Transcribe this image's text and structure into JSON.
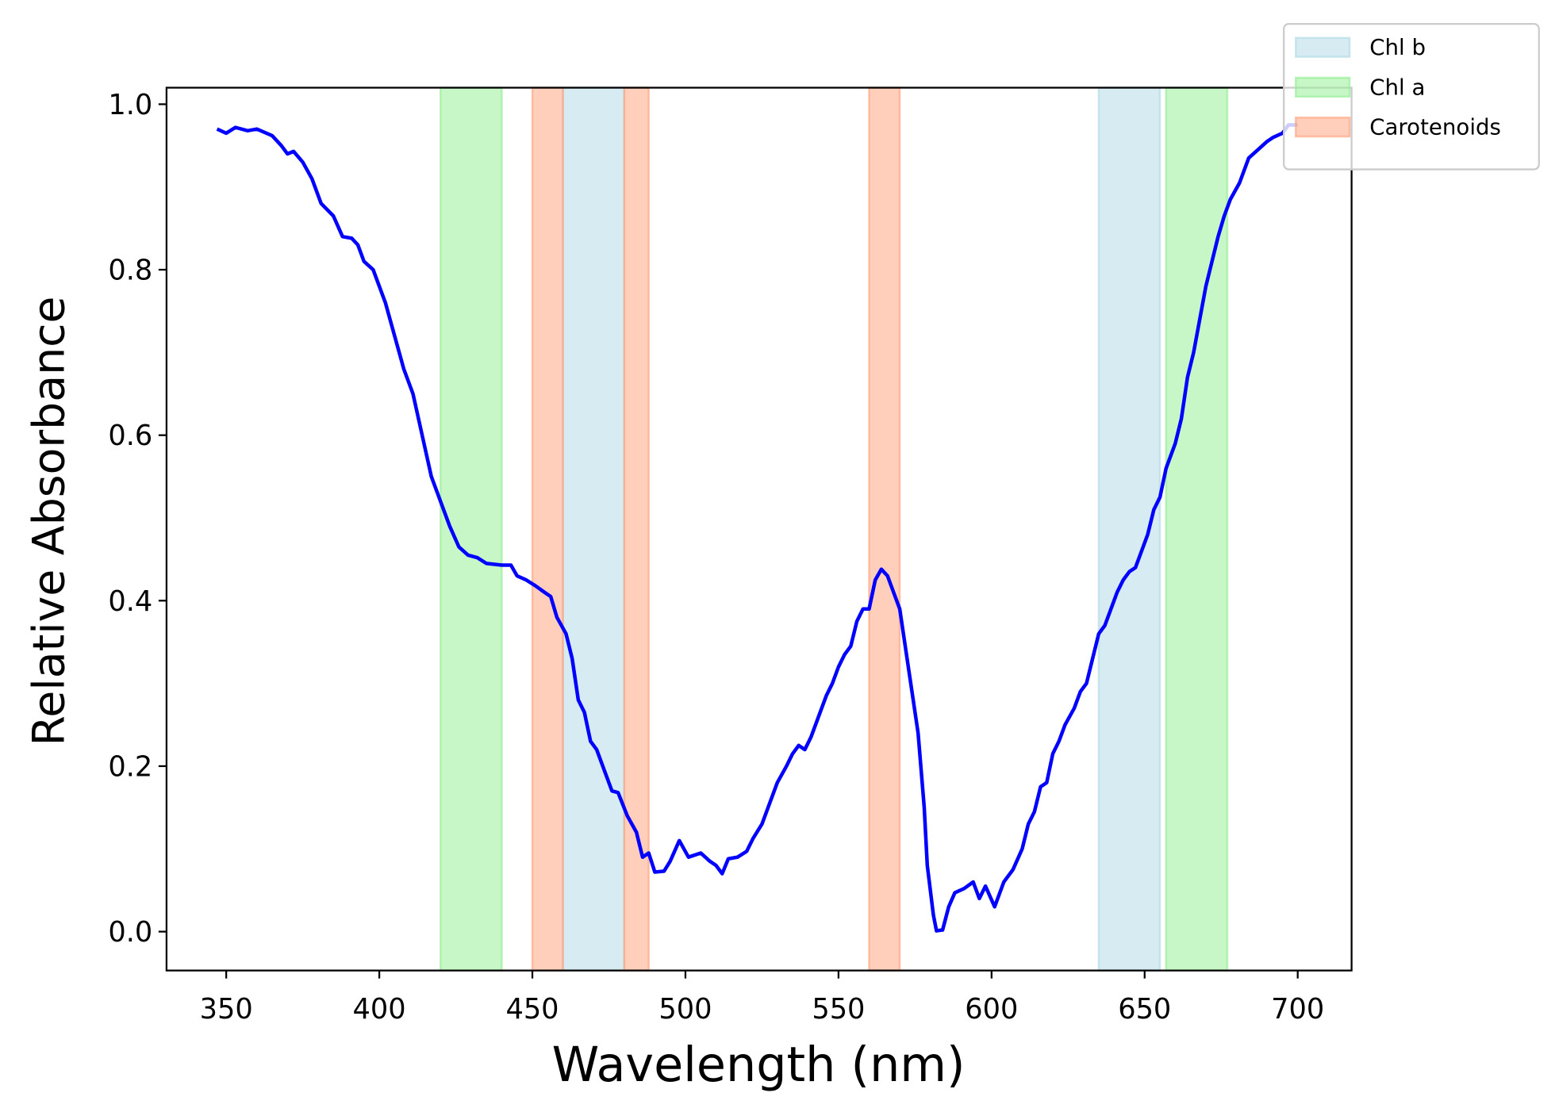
{
  "chart_data": {
    "type": "line",
    "xlabel": "Wavelength (nm)",
    "ylabel": "Relative Absorbance",
    "xlim": [
      330.5,
      717.6
    ],
    "ylim": [
      -0.047,
      1.02
    ],
    "xticks": [
      350,
      400,
      450,
      500,
      550,
      600,
      650,
      700
    ],
    "yticks": [
      {
        "value": 0,
        "label": "0.0"
      },
      {
        "value": 0.2,
        "label": "0.2"
      },
      {
        "value": 0.4,
        "label": "0.4"
      },
      {
        "value": 0.6,
        "label": "0.6"
      },
      {
        "value": 0.8,
        "label": "0.8"
      },
      {
        "value": 1.0,
        "label": "1.0"
      }
    ],
    "grid": false,
    "legend": "upper right",
    "bands": [
      {
        "name": "Chl b",
        "color": "#add8e6",
        "ranges": [
          [
            460,
            480
          ],
          [
            635,
            655
          ]
        ]
      },
      {
        "name": "Chl a",
        "color": "#90ee90",
        "ranges": [
          [
            420,
            440
          ],
          [
            657,
            677
          ]
        ]
      },
      {
        "name": "Carotenoids",
        "color": "#ffa07a",
        "ranges": [
          [
            450,
            460
          ],
          [
            480,
            488
          ],
          [
            560,
            570
          ]
        ]
      }
    ],
    "x": [
      347,
      350,
      353,
      357,
      360,
      365,
      368,
      370,
      372,
      375,
      378,
      381,
      385,
      388,
      391,
      393,
      395,
      398,
      400,
      402,
      405,
      408,
      411,
      414,
      417,
      420,
      423,
      426,
      429,
      432,
      435,
      440,
      443,
      445,
      448,
      451,
      454,
      456,
      458,
      461,
      463,
      465,
      467,
      469,
      471,
      473,
      476,
      478,
      481,
      484,
      486,
      488,
      490,
      493,
      495,
      498,
      501,
      505,
      508,
      510,
      512,
      514,
      517,
      520,
      522,
      525,
      527,
      530,
      533,
      535,
      537,
      539,
      541,
      543,
      546,
      548,
      550,
      552,
      554,
      556,
      558,
      560,
      562,
      564,
      566,
      568,
      570,
      572,
      574,
      576,
      578,
      579,
      581,
      582,
      584,
      586,
      588,
      591,
      594,
      596,
      598,
      601,
      604,
      607,
      610,
      612,
      614,
      616,
      618,
      620,
      622,
      624,
      627,
      629,
      631,
      633,
      635,
      637,
      639,
      641,
      643,
      645,
      647,
      649,
      651,
      653,
      655,
      657,
      660,
      662,
      664,
      666,
      668,
      670,
      672,
      674,
      676,
      678,
      681,
      684,
      687,
      690,
      692,
      695,
      697,
      700
    ],
    "series": [
      {
        "color": "#0000ff",
        "values": [
          0.97,
          0.965,
          0.972,
          0.968,
          0.97,
          0.962,
          0.95,
          0.94,
          0.943,
          0.93,
          0.91,
          0.88,
          0.865,
          0.84,
          0.838,
          0.83,
          0.81,
          0.8,
          0.78,
          0.76,
          0.72,
          0.68,
          0.65,
          0.6,
          0.55,
          0.52,
          0.49,
          0.465,
          0.455,
          0.452,
          0.445,
          0.443,
          0.443,
          0.43,
          0.425,
          0.418,
          0.41,
          0.405,
          0.38,
          0.36,
          0.33,
          0.28,
          0.265,
          0.23,
          0.22,
          0.2,
          0.17,
          0.168,
          0.14,
          0.12,
          0.09,
          0.095,
          0.072,
          0.073,
          0.085,
          0.11,
          0.09,
          0.095,
          0.085,
          0.08,
          0.07,
          0.088,
          0.09,
          0.097,
          0.112,
          0.13,
          0.15,
          0.18,
          0.2,
          0.215,
          0.225,
          0.22,
          0.235,
          0.255,
          0.285,
          0.3,
          0.32,
          0.335,
          0.345,
          0.375,
          0.39,
          0.39,
          0.425,
          0.438,
          0.43,
          0.41,
          0.39,
          0.34,
          0.29,
          0.24,
          0.15,
          0.08,
          0.02,
          0.001,
          0.002,
          0.03,
          0.047,
          0.052,
          0.06,
          0.04,
          0.055,
          0.03,
          0.06,
          0.075,
          0.1,
          0.13,
          0.145,
          0.175,
          0.18,
          0.215,
          0.23,
          0.25,
          0.27,
          0.29,
          0.3,
          0.33,
          0.36,
          0.37,
          0.39,
          0.41,
          0.425,
          0.435,
          0.44,
          0.46,
          0.48,
          0.51,
          0.525,
          0.56,
          0.59,
          0.62,
          0.67,
          0.7,
          0.74,
          0.78,
          0.81,
          0.84,
          0.865,
          0.885,
          0.905,
          0.935,
          0.945,
          0.955,
          0.96,
          0.965,
          0.975,
          0.975
        ]
      }
    ]
  }
}
